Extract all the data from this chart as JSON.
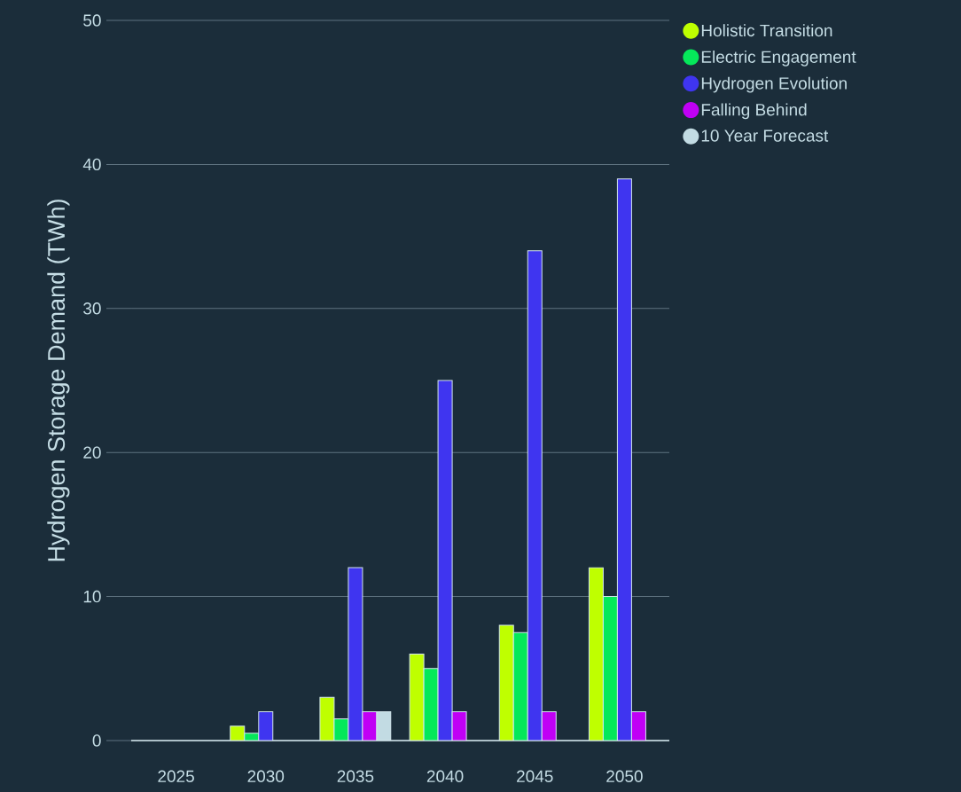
{
  "chart_data": {
    "type": "bar",
    "ylabel": "Hydrogen Storage Demand (TWh)",
    "categories": [
      "2025",
      "2030",
      "2035",
      "2040",
      "2045",
      "2050"
    ],
    "series": [
      {
        "name": "Holistic Transition",
        "color": "#bfff00",
        "values": [
          null,
          1,
          3,
          6,
          8,
          12
        ]
      },
      {
        "name": "Electric Engagement",
        "color": "#05e85a",
        "values": [
          null,
          0.5,
          1.5,
          5,
          7.5,
          10
        ]
      },
      {
        "name": "Hydrogen Evolution",
        "color": "#3f35f0",
        "values": [
          null,
          2,
          12,
          25,
          34,
          39
        ]
      },
      {
        "name": "Falling Behind",
        "color": "#c000f5",
        "values": [
          null,
          null,
          2,
          2,
          2,
          2
        ]
      },
      {
        "name": "10 Year Forecast",
        "color": "#c2dbe3",
        "values": [
          null,
          null,
          2,
          null,
          null,
          null
        ]
      }
    ],
    "ylim": [
      0,
      50
    ],
    "yticks": [
      0,
      10,
      20,
      30,
      40,
      50
    ],
    "grid": "y",
    "legend": "top right"
  }
}
